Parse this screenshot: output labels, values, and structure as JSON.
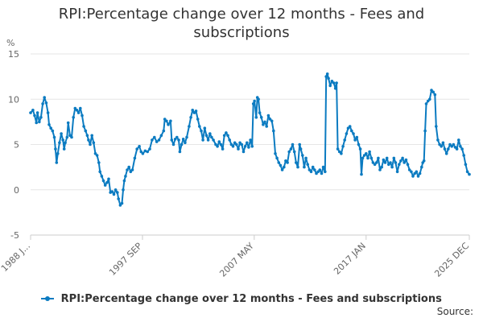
{
  "chart_data": {
    "type": "line",
    "title": "RPI:Percentage change over 12 months - Fees and subscriptions",
    "title_lines": [
      "RPI:Percentage change over 12 months - Fees and",
      "subscriptions"
    ],
    "ylabel": "%",
    "ylim": [
      -5,
      15
    ],
    "yticks": [
      -5,
      0,
      5,
      10,
      15
    ],
    "xlim": [
      1988.0,
      2025.92
    ],
    "xticks": [
      {
        "label": "1988 J...",
        "x": 1988.0
      },
      {
        "label": "1997 SEP",
        "x": 1997.67
      },
      {
        "label": "2007 MAY",
        "x": 2007.33
      },
      {
        "label": "2017 JAN",
        "x": 2017.0
      },
      {
        "label": "2025 DEC",
        "x": 2025.92
      }
    ],
    "grid": true,
    "legend_position": "bottom",
    "source_label": "Source:",
    "series": [
      {
        "name": "RPI:Percentage change over 12 months - Fees and subscriptions",
        "color": "#0b7bc1",
        "points": [
          [
            1988.0,
            8.5
          ],
          [
            1988.2,
            8.8
          ],
          [
            1988.35,
            8.2
          ],
          [
            1988.5,
            7.4
          ],
          [
            1988.6,
            8.5
          ],
          [
            1988.75,
            7.5
          ],
          [
            1988.9,
            8.0
          ],
          [
            1989.05,
            9.5
          ],
          [
            1989.2,
            10.2
          ],
          [
            1989.35,
            9.6
          ],
          [
            1989.5,
            8.5
          ],
          [
            1989.6,
            7.2
          ],
          [
            1989.75,
            6.8
          ],
          [
            1989.9,
            6.5
          ],
          [
            1990.05,
            5.8
          ],
          [
            1990.15,
            4.5
          ],
          [
            1990.25,
            3.0
          ],
          [
            1990.35,
            4.0
          ],
          [
            1990.5,
            5.2
          ],
          [
            1990.65,
            6.2
          ],
          [
            1990.8,
            5.5
          ],
          [
            1990.9,
            4.5
          ],
          [
            1991.0,
            5.2
          ],
          [
            1991.15,
            5.8
          ],
          [
            1991.25,
            7.4
          ],
          [
            1991.4,
            6.0
          ],
          [
            1991.55,
            5.8
          ],
          [
            1991.7,
            8.0
          ],
          [
            1991.85,
            9.0
          ],
          [
            1992.0,
            8.8
          ],
          [
            1992.15,
            8.5
          ],
          [
            1992.3,
            9.0
          ],
          [
            1992.45,
            8.2
          ],
          [
            1992.6,
            7.0
          ],
          [
            1992.75,
            6.5
          ],
          [
            1992.9,
            6.0
          ],
          [
            1993.0,
            5.5
          ],
          [
            1993.15,
            5.0
          ],
          [
            1993.3,
            6.0
          ],
          [
            1993.45,
            5.2
          ],
          [
            1993.6,
            4.0
          ],
          [
            1993.75,
            3.8
          ],
          [
            1993.9,
            3.0
          ],
          [
            1994.0,
            2.0
          ],
          [
            1994.15,
            1.5
          ],
          [
            1994.3,
            1.0
          ],
          [
            1994.45,
            0.5
          ],
          [
            1994.6,
            0.8
          ],
          [
            1994.75,
            1.2
          ],
          [
            1994.9,
            -0.3
          ],
          [
            1995.05,
            -0.2
          ],
          [
            1995.2,
            -0.5
          ],
          [
            1995.35,
            0.0
          ],
          [
            1995.5,
            -0.3
          ],
          [
            1995.6,
            -1.0
          ],
          [
            1995.75,
            -1.7
          ],
          [
            1995.9,
            -1.5
          ],
          [
            1996.0,
            0.0
          ],
          [
            1996.1,
            1.0
          ],
          [
            1996.2,
            1.5
          ],
          [
            1996.35,
            2.2
          ],
          [
            1996.5,
            2.5
          ],
          [
            1996.65,
            2.0
          ],
          [
            1996.8,
            2.2
          ],
          [
            1997.0,
            3.5
          ],
          [
            1997.2,
            4.5
          ],
          [
            1997.4,
            4.8
          ],
          [
            1997.55,
            4.2
          ],
          [
            1997.7,
            4.0
          ],
          [
            1997.9,
            4.3
          ],
          [
            1998.1,
            4.2
          ],
          [
            1998.3,
            4.5
          ],
          [
            1998.5,
            5.5
          ],
          [
            1998.7,
            5.8
          ],
          [
            1998.9,
            5.3
          ],
          [
            1999.1,
            5.5
          ],
          [
            1999.3,
            6.0
          ],
          [
            1999.5,
            6.5
          ],
          [
            1999.6,
            7.8
          ],
          [
            1999.75,
            7.6
          ],
          [
            1999.9,
            7.2
          ],
          [
            2000.1,
            7.6
          ],
          [
            2000.2,
            5.5
          ],
          [
            2000.35,
            5.0
          ],
          [
            2000.5,
            5.6
          ],
          [
            2000.65,
            5.8
          ],
          [
            2000.8,
            5.5
          ],
          [
            2000.9,
            4.2
          ],
          [
            2001.05,
            5.0
          ],
          [
            2001.2,
            5.6
          ],
          [
            2001.35,
            5.2
          ],
          [
            2001.5,
            5.8
          ],
          [
            2001.7,
            7.0
          ],
          [
            2001.85,
            8.0
          ],
          [
            2002.0,
            8.8
          ],
          [
            2002.15,
            8.5
          ],
          [
            2002.3,
            8.7
          ],
          [
            2002.45,
            7.8
          ],
          [
            2002.6,
            7.0
          ],
          [
            2002.75,
            6.5
          ],
          [
            2002.9,
            5.5
          ],
          [
            2003.05,
            6.8
          ],
          [
            2003.2,
            6.0
          ],
          [
            2003.35,
            5.5
          ],
          [
            2003.5,
            6.2
          ],
          [
            2003.65,
            5.8
          ],
          [
            2003.8,
            5.5
          ],
          [
            2004.0,
            5.0
          ],
          [
            2004.15,
            4.8
          ],
          [
            2004.3,
            5.3
          ],
          [
            2004.45,
            5.0
          ],
          [
            2004.6,
            4.5
          ],
          [
            2004.75,
            6.0
          ],
          [
            2004.9,
            6.3
          ],
          [
            2005.05,
            6.0
          ],
          [
            2005.2,
            5.5
          ],
          [
            2005.35,
            5.0
          ],
          [
            2005.5,
            4.8
          ],
          [
            2005.65,
            5.2
          ],
          [
            2005.8,
            5.0
          ],
          [
            2005.95,
            4.5
          ],
          [
            2006.1,
            5.2
          ],
          [
            2006.25,
            5.0
          ],
          [
            2006.4,
            4.2
          ],
          [
            2006.55,
            4.8
          ],
          [
            2006.7,
            5.2
          ],
          [
            2006.85,
            4.7
          ],
          [
            2007.0,
            5.5
          ],
          [
            2007.15,
            4.8
          ],
          [
            2007.25,
            9.5
          ],
          [
            2007.35,
            9.8
          ],
          [
            2007.5,
            8.0
          ],
          [
            2007.6,
            10.2
          ],
          [
            2007.7,
            10.0
          ],
          [
            2007.8,
            8.5
          ],
          [
            2007.95,
            8.0
          ],
          [
            2008.1,
            7.2
          ],
          [
            2008.25,
            7.5
          ],
          [
            2008.4,
            7.0
          ],
          [
            2008.55,
            8.2
          ],
          [
            2008.7,
            7.8
          ],
          [
            2008.85,
            7.6
          ],
          [
            2009.0,
            6.5
          ],
          [
            2009.15,
            4.0
          ],
          [
            2009.3,
            3.5
          ],
          [
            2009.45,
            3.0
          ],
          [
            2009.6,
            2.7
          ],
          [
            2009.75,
            2.2
          ],
          [
            2009.9,
            2.5
          ],
          [
            2010.05,
            3.2
          ],
          [
            2010.2,
            3.0
          ],
          [
            2010.35,
            4.2
          ],
          [
            2010.5,
            4.5
          ],
          [
            2010.65,
            5.0
          ],
          [
            2010.8,
            4.2
          ],
          [
            2010.95,
            3.0
          ],
          [
            2011.1,
            2.5
          ],
          [
            2011.25,
            5.0
          ],
          [
            2011.35,
            4.5
          ],
          [
            2011.5,
            3.8
          ],
          [
            2011.65,
            2.5
          ],
          [
            2011.8,
            3.5
          ],
          [
            2011.95,
            2.8
          ],
          [
            2012.1,
            2.2
          ],
          [
            2012.25,
            2.0
          ],
          [
            2012.4,
            2.5
          ],
          [
            2012.55,
            2.2
          ],
          [
            2012.7,
            1.8
          ],
          [
            2012.85,
            2.0
          ],
          [
            2013.0,
            2.2
          ],
          [
            2013.15,
            1.8
          ],
          [
            2013.3,
            2.5
          ],
          [
            2013.45,
            2.0
          ],
          [
            2013.55,
            12.5
          ],
          [
            2013.65,
            12.8
          ],
          [
            2013.75,
            12.3
          ],
          [
            2013.9,
            11.5
          ],
          [
            2014.05,
            12.0
          ],
          [
            2014.2,
            11.8
          ],
          [
            2014.35,
            11.2
          ],
          [
            2014.45,
            11.8
          ],
          [
            2014.55,
            4.5
          ],
          [
            2014.7,
            4.2
          ],
          [
            2014.85,
            4.0
          ],
          [
            2015.0,
            4.8
          ],
          [
            2015.15,
            5.5
          ],
          [
            2015.3,
            6.2
          ],
          [
            2015.45,
            6.8
          ],
          [
            2015.6,
            7.0
          ],
          [
            2015.75,
            6.5
          ],
          [
            2015.9,
            6.2
          ],
          [
            2016.05,
            5.5
          ],
          [
            2016.2,
            5.8
          ],
          [
            2016.35,
            5.0
          ],
          [
            2016.5,
            4.5
          ],
          [
            2016.6,
            1.7
          ],
          [
            2016.7,
            3.5
          ],
          [
            2016.85,
            3.8
          ],
          [
            2017.0,
            4.0
          ],
          [
            2017.15,
            3.5
          ],
          [
            2017.3,
            4.2
          ],
          [
            2017.45,
            3.5
          ],
          [
            2017.6,
            3.0
          ],
          [
            2017.75,
            2.8
          ],
          [
            2017.9,
            3.0
          ],
          [
            2018.05,
            3.5
          ],
          [
            2018.2,
            2.2
          ],
          [
            2018.35,
            2.5
          ],
          [
            2018.5,
            3.3
          ],
          [
            2018.65,
            3.0
          ],
          [
            2018.8,
            3.5
          ],
          [
            2018.95,
            2.8
          ],
          [
            2019.1,
            3.0
          ],
          [
            2019.25,
            2.5
          ],
          [
            2019.4,
            3.5
          ],
          [
            2019.55,
            3.0
          ],
          [
            2019.7,
            2.0
          ],
          [
            2019.85,
            2.8
          ],
          [
            2020.0,
            3.2
          ],
          [
            2020.15,
            3.5
          ],
          [
            2020.3,
            3.0
          ],
          [
            2020.45,
            3.3
          ],
          [
            2020.6,
            2.8
          ],
          [
            2020.75,
            2.2
          ],
          [
            2020.9,
            2.0
          ],
          [
            2021.05,
            1.5
          ],
          [
            2021.2,
            1.8
          ],
          [
            2021.35,
            2.0
          ],
          [
            2021.5,
            1.5
          ],
          [
            2021.65,
            1.8
          ],
          [
            2021.8,
            2.5
          ],
          [
            2021.9,
            3.0
          ],
          [
            2022.0,
            3.2
          ],
          [
            2022.1,
            6.5
          ],
          [
            2022.2,
            9.5
          ],
          [
            2022.35,
            9.8
          ],
          [
            2022.5,
            10.0
          ],
          [
            2022.65,
            11.0
          ],
          [
            2022.8,
            10.8
          ],
          [
            2022.95,
            10.5
          ],
          [
            2023.05,
            7.0
          ],
          [
            2023.2,
            5.5
          ],
          [
            2023.35,
            5.0
          ],
          [
            2023.5,
            4.8
          ],
          [
            2023.65,
            5.2
          ],
          [
            2023.8,
            4.5
          ],
          [
            2023.95,
            4.0
          ],
          [
            2024.1,
            4.5
          ],
          [
            2024.25,
            5.0
          ],
          [
            2024.4,
            4.8
          ],
          [
            2024.55,
            5.0
          ],
          [
            2024.7,
            4.7
          ],
          [
            2024.85,
            4.5
          ],
          [
            2025.0,
            5.5
          ],
          [
            2025.15,
            4.8
          ],
          [
            2025.3,
            4.5
          ],
          [
            2025.45,
            3.8
          ],
          [
            2025.6,
            2.8
          ],
          [
            2025.75,
            2.0
          ],
          [
            2025.92,
            1.7
          ]
        ]
      }
    ]
  }
}
